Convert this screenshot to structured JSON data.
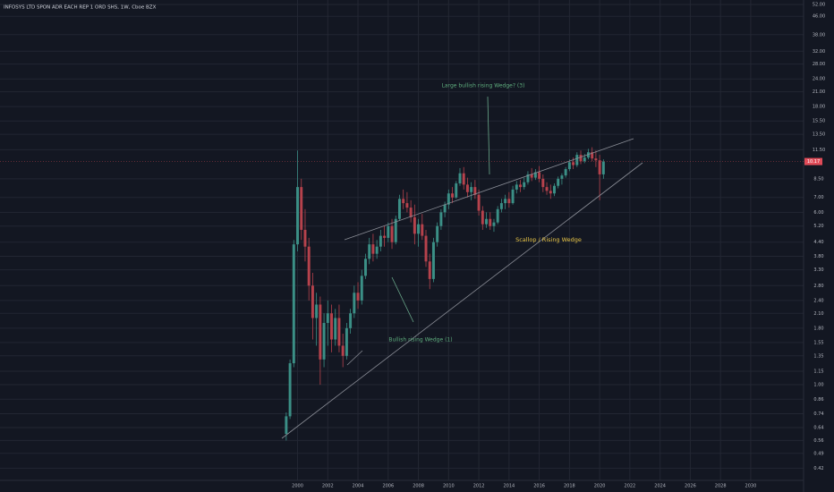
{
  "chart_data": {
    "type": "candlestick",
    "title": "INFOSYS LTD SPON ADR EACH REP 1 ORD SHS, 1W, Cboe BZX",
    "log_scale": true,
    "grid": true,
    "up_color": "#3b8f86",
    "down_color": "#b6424c",
    "x": [
      1999.25,
      1999.5,
      1999.75,
      2000,
      2000.25,
      2000.5,
      2000.75,
      2001,
      2001.25,
      2001.5,
      2001.75,
      2002,
      2002.25,
      2002.5,
      2002.75,
      2003,
      2003.25,
      2003.5,
      2003.75,
      2004,
      2004.25,
      2004.5,
      2004.75,
      2005,
      2005.25,
      2005.5,
      2005.75,
      2006,
      2006.25,
      2006.5,
      2006.75,
      2007,
      2007.25,
      2007.5,
      2007.75,
      2008,
      2008.25,
      2008.5,
      2008.75,
      2009,
      2009.25,
      2009.5,
      2009.75,
      2010,
      2010.25,
      2010.5,
      2010.75,
      2011,
      2011.25,
      2011.5,
      2011.75,
      2012,
      2012.25,
      2012.5,
      2012.75,
      2013,
      2013.25,
      2013.5,
      2013.75,
      2014,
      2014.25,
      2014.5,
      2014.75,
      2015,
      2015.25,
      2015.5,
      2015.75,
      2016,
      2016.25,
      2016.5,
      2016.75,
      2017,
      2017.25,
      2017.5,
      2017.75,
      2018,
      2018.25,
      2018.5,
      2018.75,
      2019,
      2019.25,
      2019.5,
      2019.75,
      2020,
      2020.25
    ],
    "open": [
      0.6,
      0.72,
      1.25,
      4.3,
      7.8,
      5.0,
      4.2,
      2.8,
      2.0,
      2.3,
      1.3,
      1.9,
      2.1,
      1.6,
      2.0,
      1.5,
      1.35,
      1.8,
      2.1,
      2.6,
      2.4,
      3.1,
      3.7,
      4.3,
      3.9,
      4.2,
      4.7,
      4.6,
      5.2,
      4.4,
      5.6,
      6.9,
      6.6,
      6.3,
      5.7,
      4.8,
      5.3,
      4.7,
      3.6,
      3.0,
      4.4,
      5.2,
      6.0,
      6.5,
      7.3,
      7.0,
      8.1,
      9.0,
      8.0,
      7.4,
      7.8,
      7.2,
      6.1,
      5.3,
      5.6,
      5.2,
      5.4,
      6.2,
      6.6,
      6.9,
      6.6,
      7.6,
      8.0,
      7.8,
      8.2,
      8.9,
      8.6,
      9.1,
      8.5,
      7.8,
      7.5,
      7.3,
      7.9,
      8.5,
      8.8,
      9.4,
      10.1,
      9.8,
      10.9,
      10.2,
      10.6,
      11.2,
      10.5,
      10.3,
      8.9
    ],
    "high": [
      0.75,
      1.3,
      4.5,
      11.4,
      8.5,
      6.2,
      4.6,
      3.2,
      2.6,
      2.5,
      2.1,
      2.4,
      2.3,
      2.2,
      2.3,
      1.7,
      1.9,
      2.2,
      2.8,
      2.9,
      3.3,
      3.9,
      4.6,
      4.8,
      4.5,
      5.0,
      5.2,
      5.4,
      5.6,
      5.8,
      7.2,
      7.6,
      7.4,
      6.8,
      6.5,
      5.6,
      5.9,
      5.0,
      3.9,
      4.6,
      5.4,
      6.2,
      6.7,
      7.6,
      7.8,
      8.3,
      9.5,
      9.6,
      8.6,
      8.2,
      8.4,
      7.6,
      6.4,
      6.0,
      6.0,
      5.6,
      6.4,
      6.9,
      7.2,
      7.4,
      7.9,
      8.3,
      8.4,
      8.6,
      9.2,
      9.5,
      9.4,
      9.7,
      8.9,
      8.2,
      8.0,
      8.1,
      8.7,
      9.0,
      9.6,
      10.4,
      10.6,
      11.2,
      11.4,
      11.0,
      11.6,
      11.8,
      11.4,
      10.9,
      10.4
    ],
    "low": [
      0.56,
      0.7,
      1.2,
      4.0,
      4.5,
      3.6,
      2.4,
      1.6,
      1.5,
      1.0,
      1.2,
      1.5,
      1.4,
      1.5,
      1.4,
      1.2,
      1.3,
      1.7,
      2.0,
      2.2,
      2.3,
      3.0,
      3.5,
      3.6,
      3.7,
      4.0,
      4.2,
      4.4,
      4.1,
      4.3,
      5.5,
      6.2,
      6.0,
      5.4,
      4.3,
      4.2,
      4.5,
      3.4,
      2.7,
      2.9,
      4.2,
      5.0,
      5.7,
      6.2,
      6.6,
      6.9,
      7.9,
      7.6,
      7.0,
      6.8,
      6.9,
      5.8,
      5.0,
      5.1,
      5.0,
      4.9,
      5.3,
      6.0,
      6.2,
      6.3,
      6.5,
      7.3,
      7.4,
      7.6,
      8.0,
      8.3,
      8.4,
      8.2,
      7.4,
      7.2,
      6.9,
      7.1,
      7.7,
      8.0,
      8.6,
      9.2,
      9.4,
      9.6,
      9.9,
      10.0,
      10.4,
      10.2,
      9.6,
      6.8,
      8.5
    ],
    "close": [
      0.72,
      1.25,
      4.3,
      7.8,
      5.0,
      4.2,
      2.8,
      2.0,
      2.3,
      1.3,
      1.9,
      2.1,
      1.6,
      2.0,
      1.5,
      1.35,
      1.8,
      2.1,
      2.6,
      2.4,
      3.1,
      3.7,
      4.3,
      3.9,
      4.2,
      4.7,
      4.6,
      5.2,
      4.4,
      5.6,
      6.9,
      6.6,
      6.3,
      5.7,
      4.8,
      5.3,
      4.7,
      3.6,
      3.0,
      4.4,
      5.2,
      6.0,
      6.5,
      7.3,
      7.0,
      8.1,
      9.0,
      8.0,
      7.4,
      7.8,
      7.2,
      6.1,
      5.3,
      5.6,
      5.2,
      5.4,
      6.2,
      6.6,
      6.9,
      6.6,
      7.6,
      8.0,
      7.8,
      8.2,
      8.9,
      8.6,
      9.1,
      8.5,
      7.8,
      7.5,
      7.3,
      7.9,
      8.5,
      8.8,
      9.4,
      10.1,
      9.8,
      10.9,
      10.2,
      10.6,
      11.2,
      10.5,
      10.3,
      8.9,
      10.17
    ],
    "xlim": [
      1980.3,
      2033.5
    ],
    "ylim": [
      0.37,
      54.5
    ],
    "xticks": [
      2000,
      2002,
      2004,
      2006,
      2008,
      2010,
      2012,
      2014,
      2016,
      2018,
      2020,
      2022,
      2024,
      2026,
      2028,
      2030
    ],
    "yticks": [
      {
        "value": 52,
        "label": "52.00"
      },
      {
        "value": 46,
        "label": "46.00"
      },
      {
        "value": 38,
        "label": "38.00"
      },
      {
        "value": 32,
        "label": "32.00"
      },
      {
        "value": 28,
        "label": "28.00"
      },
      {
        "value": 24,
        "label": "24.00"
      },
      {
        "value": 21,
        "label": "21.00"
      },
      {
        "value": 18,
        "label": "18.00"
      },
      {
        "value": 15.5,
        "label": "15.50"
      },
      {
        "value": 13.5,
        "label": "13.50"
      },
      {
        "value": 11.5,
        "label": "11.50"
      },
      {
        "value": 8.5,
        "label": "8.50"
      },
      {
        "value": 7,
        "label": "7.00"
      },
      {
        "value": 6,
        "label": "6.00"
      },
      {
        "value": 5.2,
        "label": "5.20"
      },
      {
        "value": 4.4,
        "label": "4.40"
      },
      {
        "value": 3.8,
        "label": "3.80"
      },
      {
        "value": 3.3,
        "label": "3.30"
      },
      {
        "value": 2.8,
        "label": "2.80"
      },
      {
        "value": 2.4,
        "label": "2.40"
      },
      {
        "value": 2.1,
        "label": "2.10"
      },
      {
        "value": 1.8,
        "label": "1.80"
      },
      {
        "value": 1.55,
        "label": "1.55"
      },
      {
        "value": 1.35,
        "label": "1.35"
      },
      {
        "value": 1.15,
        "label": "1.15"
      },
      {
        "value": 1,
        "label": "1.00"
      },
      {
        "value": 0.86,
        "label": "0.86"
      },
      {
        "value": 0.74,
        "label": "0.74"
      },
      {
        "value": 0.64,
        "label": "0.64"
      },
      {
        "value": 0.56,
        "label": "0.56"
      },
      {
        "value": 0.49,
        "label": "0.49"
      },
      {
        "value": 0.42,
        "label": "0.42"
      }
    ],
    "last_price": {
      "value": 10.17,
      "label": "10.17"
    },
    "annotations": [
      "Large bullish rising Wedge? (3)",
      "Scallop / Rising Wedge",
      "Bullish rising Wedge (1)"
    ]
  }
}
